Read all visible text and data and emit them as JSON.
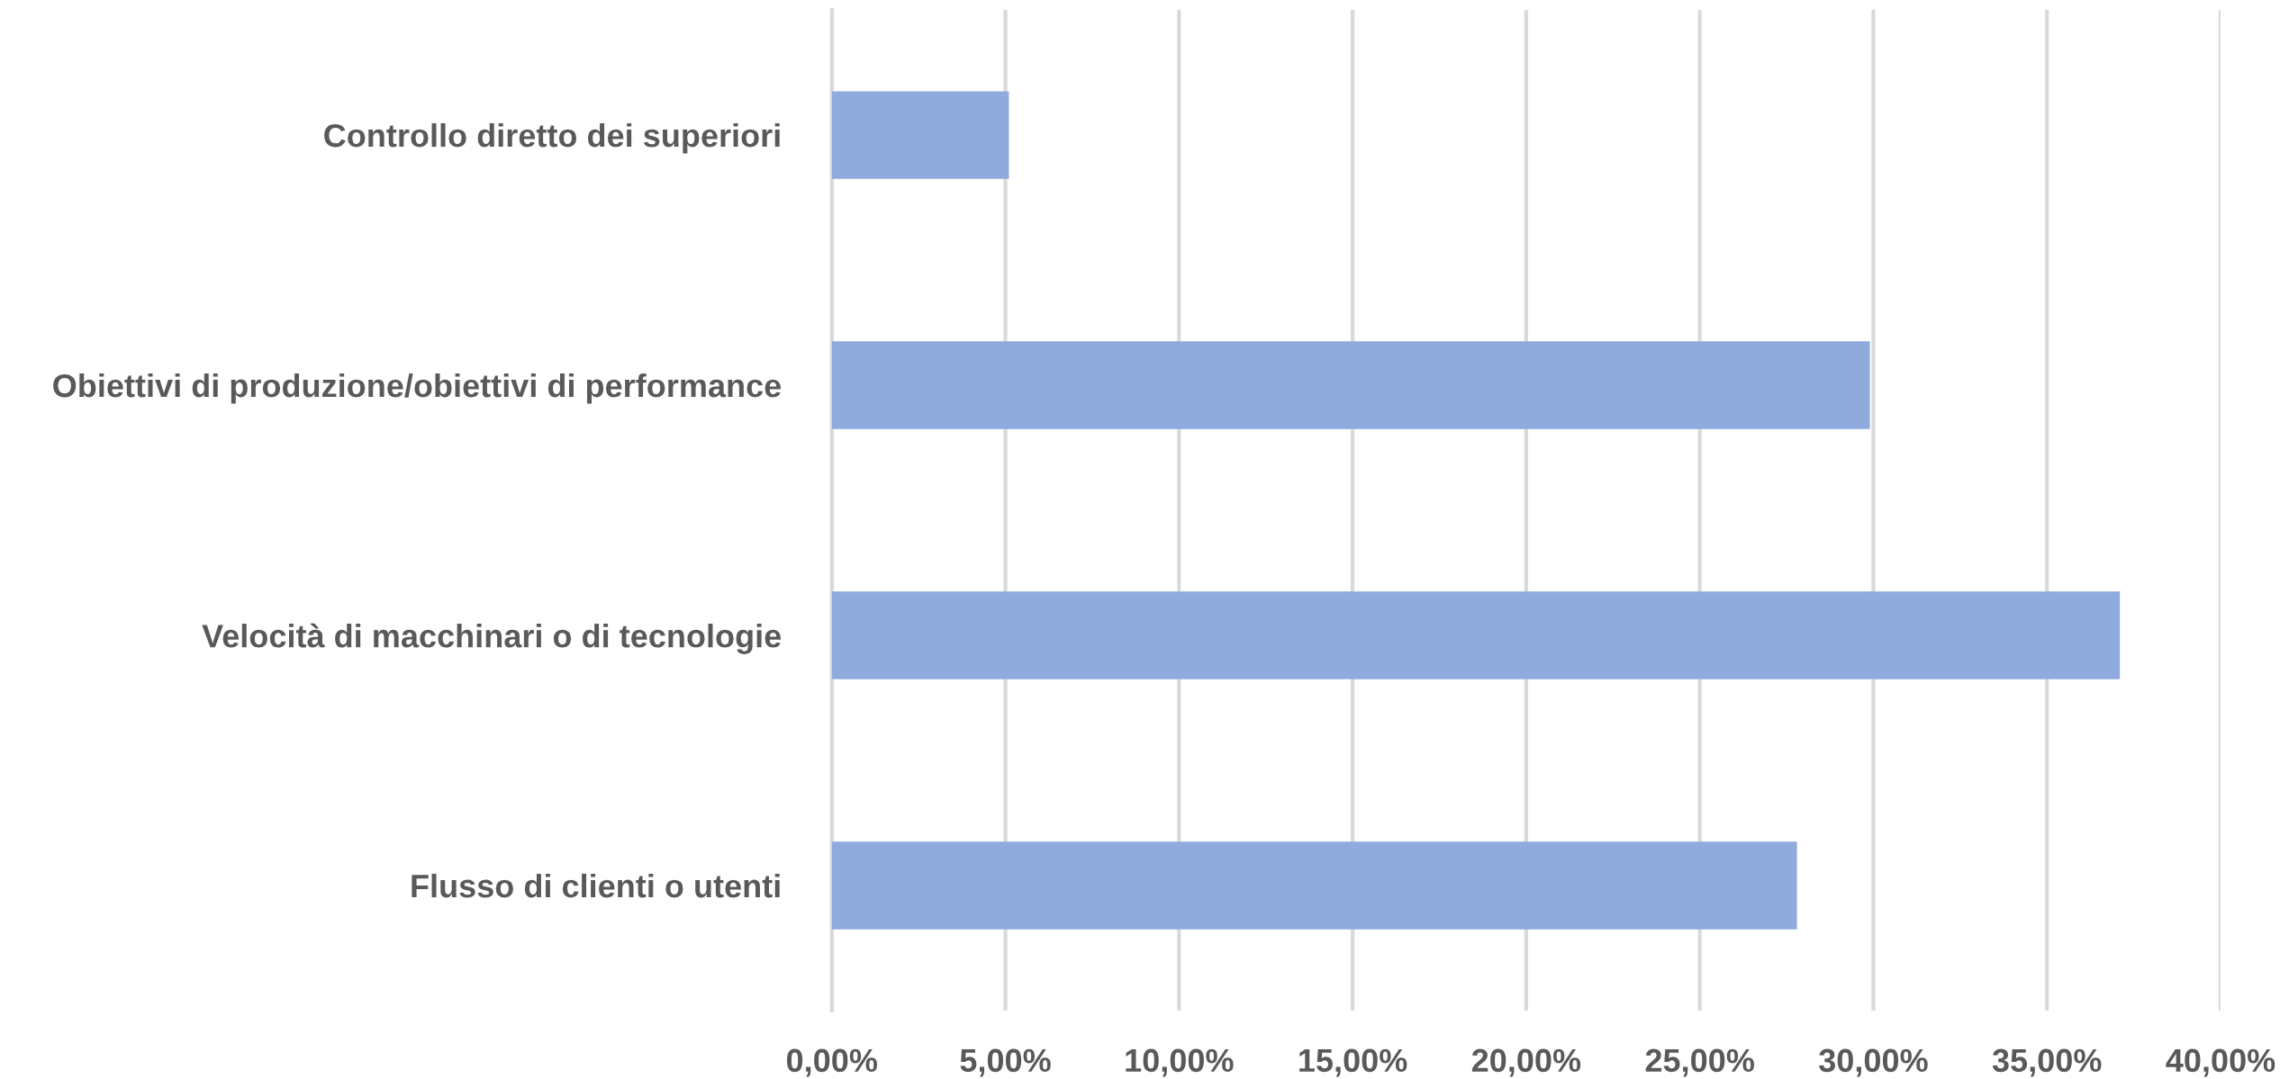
{
  "chart_data": {
    "type": "bar",
    "orientation": "horizontal",
    "categories": [
      "Controllo diretto dei superiori",
      "Obiettivi di produzione/obiettivi di performance",
      "Velocità di macchinari o di tecnologie",
      "Flusso di clienti o utenti"
    ],
    "values": [
      5.1,
      29.9,
      37.1,
      27.8
    ],
    "color": "#8faadc",
    "xlim": [
      0,
      40
    ],
    "xticks": [
      {
        "value": 0,
        "label": "0,00%"
      },
      {
        "value": 5,
        "label": "5,00%"
      },
      {
        "value": 10,
        "label": "10,00%"
      },
      {
        "value": 15,
        "label": "15,00%"
      },
      {
        "value": 20,
        "label": "20,00%"
      },
      {
        "value": 25,
        "label": "25,00%"
      },
      {
        "value": 30,
        "label": "30,00%"
      },
      {
        "value": 35,
        "label": "35,00%"
      },
      {
        "value": 40,
        "label": "40,00%"
      }
    ],
    "grid": "x",
    "legend": false
  }
}
